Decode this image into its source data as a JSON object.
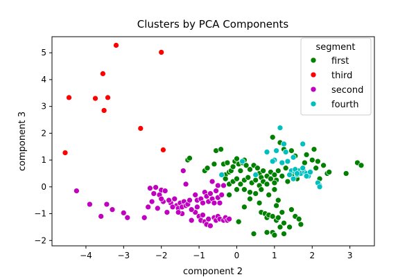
{
  "chart_data": {
    "type": "scatter",
    "title": "Clusters by PCA Components",
    "xlabel": "component 2",
    "ylabel": "component 3",
    "xlim": [
      -4.9,
      3.65
    ],
    "ylim": [
      -2.2,
      5.6
    ],
    "xticks": [
      -4,
      -3,
      -2,
      -1,
      0,
      1,
      2,
      3
    ],
    "yticks": [
      -2,
      -1,
      0,
      1,
      2,
      3,
      4,
      5
    ],
    "grid": false,
    "legend": {
      "title": "segment",
      "placement": "top-right"
    },
    "series": [
      {
        "name": "first",
        "color": "#008000",
        "points": [
          [
            -1.3,
            1.0
          ],
          [
            -1.25,
            1.07
          ],
          [
            -0.85,
            0.6
          ],
          [
            -0.78,
            0.7
          ],
          [
            -0.6,
            0.85
          ],
          [
            -0.55,
            1.35
          ],
          [
            -0.42,
            1.4
          ],
          [
            -0.35,
            0.85
          ],
          [
            -0.3,
            0.45
          ],
          [
            -0.25,
            0.9
          ],
          [
            -0.2,
            0.55
          ],
          [
            -0.15,
            0.6
          ],
          [
            -0.1,
            0.75
          ],
          [
            -0.05,
            0.95
          ],
          [
            0.0,
            1.05
          ],
          [
            0.05,
            0.85
          ],
          [
            0.1,
            0.6
          ],
          [
            0.15,
            0.9
          ],
          [
            0.2,
            1.0
          ],
          [
            0.25,
            0.8
          ],
          [
            0.35,
            0.65
          ],
          [
            0.45,
            0.8
          ],
          [
            0.55,
            0.7
          ],
          [
            0.6,
            0.5
          ],
          [
            0.65,
            0.35
          ],
          [
            0.7,
            0.6
          ],
          [
            0.8,
            0.4
          ],
          [
            0.9,
            0.55
          ],
          [
            1.0,
            0.45
          ],
          [
            1.05,
            0.25
          ],
          [
            1.1,
            0.6
          ],
          [
            1.2,
            0.4
          ],
          [
            1.3,
            0.7
          ],
          [
            1.35,
            0.2
          ],
          [
            1.5,
            0.5
          ],
          [
            1.6,
            0.3
          ],
          [
            1.7,
            0.6
          ],
          [
            1.8,
            0.9
          ],
          [
            1.9,
            0.5
          ],
          [
            2.0,
            1.0
          ],
          [
            2.1,
            0.7
          ],
          [
            2.2,
            0.3
          ],
          [
            2.3,
            0.8
          ],
          [
            2.4,
            0.5
          ],
          [
            2.45,
            0.55
          ],
          [
            2.9,
            0.5
          ],
          [
            3.2,
            0.9
          ],
          [
            3.3,
            0.8
          ],
          [
            -0.3,
            0.3
          ],
          [
            -0.2,
            0.1
          ],
          [
            -0.1,
            0.2
          ],
          [
            0.0,
            0.3
          ],
          [
            0.1,
            0.1
          ],
          [
            0.2,
            0.25
          ],
          [
            0.3,
            0.35
          ],
          [
            0.4,
            0.15
          ],
          [
            0.5,
            0.25
          ],
          [
            0.6,
            0.05
          ],
          [
            0.7,
            0.2
          ],
          [
            0.8,
            0.1
          ],
          [
            0.9,
            0.3
          ],
          [
            1.0,
            0.15
          ],
          [
            -0.2,
            -0.3
          ],
          [
            0.0,
            -0.1
          ],
          [
            0.2,
            -0.1
          ],
          [
            0.35,
            -0.2
          ],
          [
            0.5,
            -0.25
          ],
          [
            0.65,
            -0.1
          ],
          [
            0.85,
            -0.3
          ],
          [
            1.0,
            -0.1
          ],
          [
            1.1,
            -0.5
          ],
          [
            1.05,
            -0.7
          ],
          [
            0.2,
            -0.75
          ],
          [
            0.35,
            -0.45
          ],
          [
            0.6,
            -0.6
          ],
          [
            0.65,
            -0.95
          ],
          [
            0.75,
            -1.0
          ],
          [
            0.8,
            -1.15
          ],
          [
            0.85,
            -1.05
          ],
          [
            0.95,
            -1.1
          ],
          [
            1.05,
            -1.25
          ],
          [
            1.1,
            -1.15
          ],
          [
            1.2,
            -0.95
          ],
          [
            1.25,
            -1.35
          ],
          [
            1.4,
            -1.5
          ],
          [
            1.45,
            -0.85
          ],
          [
            1.55,
            -1.1
          ],
          [
            1.65,
            -1.2
          ],
          [
            1.7,
            -1.4
          ],
          [
            0.05,
            -1.3
          ],
          [
            0.45,
            -1.75
          ],
          [
            0.8,
            -1.7
          ],
          [
            0.95,
            -1.7
          ],
          [
            1.0,
            -1.8
          ],
          [
            1.15,
            -1.5
          ],
          [
            1.25,
            -1.75
          ],
          [
            0.95,
            1.85
          ],
          [
            1.15,
            1.65
          ],
          [
            1.25,
            1.4
          ],
          [
            1.45,
            1.35
          ],
          [
            1.55,
            1.15
          ],
          [
            1.85,
            1.2
          ],
          [
            2.05,
            1.4
          ],
          [
            2.15,
            0.95
          ]
        ]
      },
      {
        "name": "third",
        "color": "#ff0000",
        "points": [
          [
            -3.2,
            5.28
          ],
          [
            -2.0,
            5.02
          ],
          [
            -3.55,
            4.22
          ],
          [
            -4.45,
            3.33
          ],
          [
            -3.75,
            3.3
          ],
          [
            -3.42,
            3.33
          ],
          [
            -3.52,
            2.85
          ],
          [
            -2.55,
            2.18
          ],
          [
            -1.95,
            1.38
          ],
          [
            -4.55,
            1.27
          ]
        ]
      },
      {
        "name": "second",
        "color": "#bf00bf",
        "points": [
          [
            -4.25,
            -0.15
          ],
          [
            -3.9,
            -0.65
          ],
          [
            -3.45,
            -0.65
          ],
          [
            -3.3,
            -0.85
          ],
          [
            -3.6,
            -1.1
          ],
          [
            -3.0,
            -0.97
          ],
          [
            -2.9,
            -1.15
          ],
          [
            -2.45,
            -1.15
          ],
          [
            -2.3,
            -0.05
          ],
          [
            -2.15,
            -0.02
          ],
          [
            -2.0,
            -0.12
          ],
          [
            -1.9,
            -0.15
          ],
          [
            -2.2,
            -0.25
          ],
          [
            -2.05,
            -0.3
          ],
          [
            -1.95,
            -0.55
          ],
          [
            -2.1,
            -0.8
          ],
          [
            -1.85,
            -0.95
          ],
          [
            -2.0,
            -0.45
          ],
          [
            -1.75,
            -0.6
          ],
          [
            -1.65,
            -0.45
          ],
          [
            -1.6,
            -0.7
          ],
          [
            -1.55,
            -0.8
          ],
          [
            -1.5,
            -0.6
          ],
          [
            -1.45,
            -0.75
          ],
          [
            -1.4,
            -0.55
          ],
          [
            -1.35,
            -0.7
          ],
          [
            -1.3,
            -0.65
          ],
          [
            -1.25,
            -0.5
          ],
          [
            -1.35,
            0.1
          ],
          [
            -1.42,
            0.6
          ],
          [
            -1.45,
            -1.0
          ],
          [
            -1.2,
            -1.25
          ],
          [
            -1.1,
            -0.3
          ],
          [
            -1.05,
            -0.5
          ],
          [
            -0.95,
            -0.45
          ],
          [
            -0.9,
            -0.6
          ],
          [
            -0.85,
            -0.2
          ],
          [
            -0.8,
            -0.35
          ],
          [
            -0.75,
            -0.55
          ],
          [
            -0.7,
            -0.25
          ],
          [
            -0.65,
            -0.45
          ],
          [
            -0.6,
            -0.6
          ],
          [
            -0.55,
            -0.15
          ],
          [
            -0.5,
            -0.4
          ],
          [
            -0.45,
            -0.6
          ],
          [
            -0.4,
            -0.3
          ],
          [
            -1.1,
            -0.95
          ],
          [
            -1.0,
            -1.1
          ],
          [
            -0.95,
            -1.25
          ],
          [
            -0.9,
            -1.05
          ],
          [
            -0.85,
            -1.3
          ],
          [
            -0.8,
            -1.4
          ],
          [
            -0.75,
            -1.2
          ],
          [
            -0.7,
            -1.45
          ],
          [
            -0.6,
            -1.15
          ],
          [
            -0.55,
            -1.25
          ],
          [
            -0.5,
            -1.1
          ],
          [
            -0.45,
            -1.2
          ],
          [
            -0.35,
            -1.25
          ],
          [
            -0.3,
            -1.15
          ],
          [
            -0.25,
            -1.25
          ],
          [
            -0.2,
            -1.2
          ],
          [
            -0.65,
            0.2
          ],
          [
            -0.5,
            0.05
          ],
          [
            -0.35,
            0.05
          ],
          [
            -1.7,
            -0.75
          ],
          [
            -1.8,
            -0.5
          ],
          [
            -1.55,
            -0.95
          ],
          [
            -2.35,
            -0.75
          ],
          [
            -2.25,
            -0.55
          ],
          [
            -1.2,
            -0.85
          ],
          [
            -1.05,
            -0.75
          ]
        ]
      },
      {
        "name": "fourth",
        "color": "#00bfbf",
        "points": [
          [
            1.15,
            2.2
          ],
          [
            0.8,
            1.3
          ],
          [
            1.25,
            1.6
          ],
          [
            1.05,
            1.35
          ],
          [
            1.3,
            1.3
          ],
          [
            1.5,
            1.1
          ],
          [
            1.75,
            1.6
          ],
          [
            1.0,
            1.0
          ],
          [
            0.95,
            0.95
          ],
          [
            1.2,
            0.9
          ],
          [
            1.35,
            0.95
          ],
          [
            1.45,
            0.6
          ],
          [
            1.55,
            0.55
          ],
          [
            1.6,
            0.45
          ],
          [
            1.65,
            0.6
          ],
          [
            1.7,
            0.5
          ],
          [
            1.8,
            0.55
          ],
          [
            1.75,
            0.7
          ],
          [
            1.85,
            0.5
          ],
          [
            1.9,
            0.4
          ],
          [
            1.5,
            0.3
          ],
          [
            1.95,
            0.55
          ],
          [
            1.55,
            0.65
          ],
          [
            2.2,
            0.05
          ],
          [
            2.15,
            0.15
          ],
          [
            2.2,
            0.0
          ],
          [
            0.5,
            0.45
          ],
          [
            0.15,
            0.95
          ],
          [
            -0.4,
            0.45
          ],
          [
            1.4,
            0.45
          ],
          [
            1.85,
            0.4
          ],
          [
            1.6,
            0.5
          ]
        ]
      }
    ]
  }
}
